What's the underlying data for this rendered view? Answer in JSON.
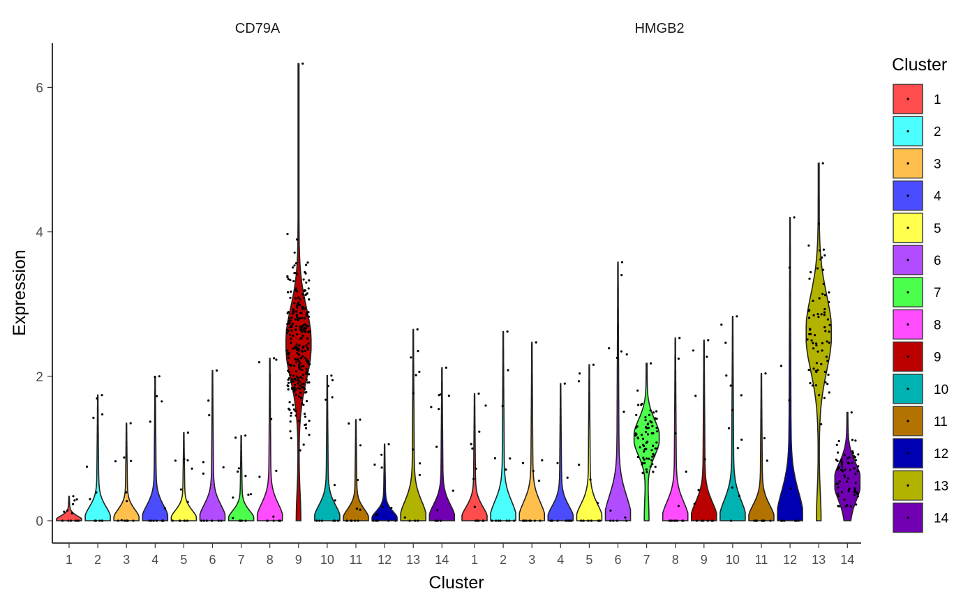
{
  "chart_data": {
    "type": "violin",
    "facets": [
      "CD79A",
      "HMGB2"
    ],
    "xlabel": "Cluster",
    "ylabel": "Expression",
    "ylim": [
      -0.3,
      6.6
    ],
    "yticks": [
      0,
      2,
      4,
      6
    ],
    "categories": [
      "1",
      "2",
      "3",
      "4",
      "5",
      "6",
      "7",
      "8",
      "9",
      "10",
      "11",
      "12",
      "13",
      "14"
    ],
    "colors": [
      "#FF4C4C",
      "#4CFFFF",
      "#FFBF4C",
      "#4C4CFF",
      "#FFFF4C",
      "#B24CFF",
      "#4CFF4C",
      "#FF4CFF",
      "#BB0000",
      "#00B2B2",
      "#B27300",
      "#0000B2",
      "#B2B200",
      "#7000B2"
    ],
    "series": [
      {
        "facet": "CD79A",
        "max_values": [
          0.34,
          1.74,
          1.35,
          2.0,
          1.22,
          2.08,
          1.18,
          2.25,
          6.33,
          2.01,
          1.4,
          1.06,
          2.65,
          2.12
        ],
        "median_values": [
          0,
          0,
          0,
          0,
          0,
          0,
          0,
          0,
          2.45,
          0,
          0,
          0,
          0,
          0
        ]
      },
      {
        "facet": "HMGB2",
        "max_values": [
          1.76,
          2.62,
          2.47,
          1.9,
          2.16,
          3.58,
          2.18,
          2.53,
          2.5,
          2.83,
          2.04,
          4.2,
          4.95,
          1.5
        ],
        "median_values": [
          0,
          0,
          0,
          0,
          0,
          0,
          1.15,
          0,
          0,
          0,
          0,
          0,
          2.6,
          0.55
        ]
      }
    ],
    "legend": {
      "title": "Cluster",
      "position": "right",
      "entries": [
        "1",
        "2",
        "3",
        "4",
        "5",
        "6",
        "7",
        "8",
        "9",
        "10",
        "11",
        "12",
        "13",
        "14"
      ]
    }
  }
}
